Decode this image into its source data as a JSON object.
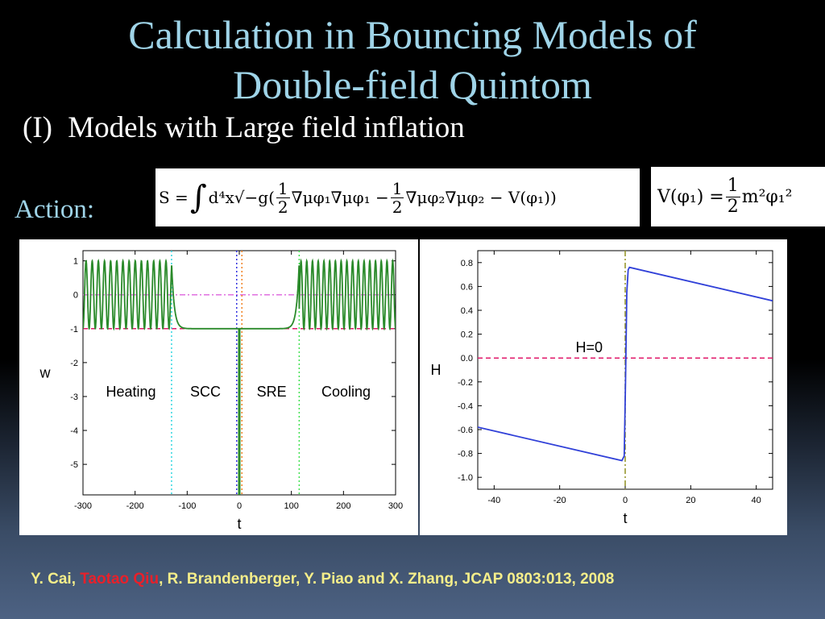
{
  "slide": {
    "title_line1": "Calculation in Bouncing Models of",
    "title_line2": "Double-field Quintom",
    "subtitle_number": "(I)",
    "subtitle_text": "Models with Large field inflation",
    "action_label": "Action:",
    "citation": {
      "part1": "Y. Cai, ",
      "highlight": "Taotao Qiu",
      "part2": ", R. Brandenberger, Y. Piao and X. Zhang, JCAP 0803:013, 2008"
    },
    "colors": {
      "title": "#9fd4e8",
      "citation": "#f5ee8a",
      "highlight": "#e8202a"
    }
  },
  "equations": {
    "action": {
      "lhs": "S =",
      "integral": "∫",
      "measure": "d⁴x√−g(",
      "half1_num": "1",
      "half1_den": "2",
      "term1": "∇μφ₁∇μφ₁ −",
      "half2_num": "1",
      "half2_den": "2",
      "term2": "∇μφ₂∇μφ₂ − V(φ₁))"
    },
    "potential": {
      "lhs": "V(φ₁) =",
      "half_num": "1",
      "half_den": "2",
      "rhs": "m²φ₁²"
    }
  },
  "chart_data": [
    {
      "type": "line",
      "xlabel": "t",
      "ylabel": "w",
      "xlim": [
        -300,
        300
      ],
      "ylim": [
        -5.9,
        1.3
      ],
      "xticks": [
        -300,
        -200,
        -100,
        0,
        100,
        200,
        300
      ],
      "yticks": [
        1,
        0,
        -1,
        -2,
        -3,
        -4,
        -5
      ],
      "series": [
        {
          "kind": "oscillation-tanh",
          "color": "#2a8a2a",
          "t_range": [
            -300,
            300
          ],
          "osc_edges": [
            -130,
            115
          ],
          "amplitude": 1,
          "floor": -1,
          "period_left": 11.8,
          "period_right": 11.0,
          "decay": 5
        }
      ],
      "hlines": [
        {
          "y": 0,
          "color": "#e070e0",
          "style": "dashdot"
        },
        {
          "y": -1,
          "color": "#e0196a",
          "style": "dashed"
        }
      ],
      "vlines": [
        {
          "x": -130,
          "color": "#2fd6e0",
          "style": "dotted"
        },
        {
          "x": -5,
          "color": "#3030e0",
          "style": "dotted"
        },
        {
          "x": 5,
          "color": "#f08020",
          "style": "dotted"
        },
        {
          "x": 115,
          "color": "#40e050",
          "style": "dotted"
        }
      ],
      "spike": {
        "x": 0,
        "y_from": -1,
        "y_to": -5.9,
        "color": "#2a8a2a"
      },
      "annotations": [
        {
          "text": "Heating",
          "x": -208,
          "y": -3
        },
        {
          "text": "SCC",
          "x": -65,
          "y": -3
        },
        {
          "text": "SRE",
          "x": 62,
          "y": -3
        },
        {
          "text": "Cooling",
          "x": 205,
          "y": -3
        }
      ]
    },
    {
      "type": "line",
      "xlabel": "t",
      "ylabel": "H",
      "xlim": [
        -45,
        45
      ],
      "ylim": [
        -1.1,
        0.9
      ],
      "xticks": [
        -40,
        -20,
        0,
        20,
        40
      ],
      "yticks": [
        0.8,
        0.6,
        0.4,
        0.2,
        0.0,
        -0.2,
        -0.4,
        -0.6,
        -0.8,
        -1.0
      ],
      "ytick_labels": [
        "0.8",
        "0.6",
        "0.4",
        "0.2",
        "0.0",
        "-0.2",
        "-0.4",
        "-0.6",
        "-0.8",
        "-1.0"
      ],
      "series": [
        {
          "kind": "polyline",
          "color": "#3040d8",
          "points": [
            [
              -45,
              -0.58
            ],
            [
              -1,
              -0.86
            ],
            [
              -0.3,
              -0.82
            ],
            [
              0.1,
              -0.2
            ],
            [
              0.5,
              0.55
            ],
            [
              0.9,
              0.74
            ],
            [
              1.3,
              0.76
            ],
            [
              45,
              0.48
            ]
          ]
        }
      ],
      "hlines": [
        {
          "y": 0,
          "color": "#e0196a",
          "style": "dashed"
        }
      ],
      "vlines": [
        {
          "x": 0,
          "color": "#909020",
          "style": "dashdot"
        }
      ],
      "annotations": [
        {
          "text": "H=0",
          "x": -11,
          "y": 0.05
        }
      ]
    }
  ]
}
